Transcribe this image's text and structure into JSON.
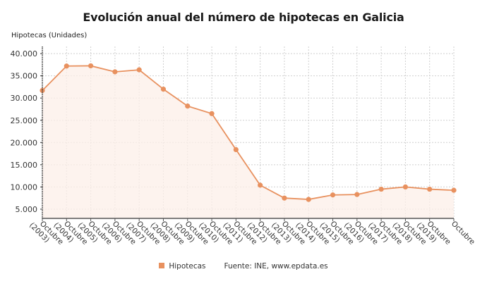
{
  "header": {
    "title": "Evolución anual del número de hipotecas en Galicia",
    "y_axis_title": "Hipotecas (Unidades)"
  },
  "legend": {
    "series_label": "Hipotecas",
    "source": "Fuente: INE, www.epdata.es"
  },
  "colors": {
    "line": "#E8915F",
    "marker": "#E8915F",
    "area_fill": "#FCEFE8",
    "grid": "#CFCFCF",
    "axis": "#333333"
  },
  "chart_data": {
    "type": "line",
    "title": "Evolución anual del número de hipotecas en Galicia",
    "xlabel": "",
    "ylabel": "Hipotecas (Unidades)",
    "categories": [
      "Octubre (2003)",
      "Octubre (2004)",
      "Octubre (2005)",
      "Octubre (2006)",
      "Octubre (2007)",
      "Octubre (2008)",
      "Octubre (2009)",
      "Octubre (2010)",
      "Octubre (2011)",
      "Octubre (2012)",
      "Octubre (2013)",
      "Octubre (2014)",
      "Octubre (2015)",
      "Octubre (2016)",
      "Octubre (2017)",
      "Octubre (2018)",
      "Octubre (2019)",
      "Octubre"
    ],
    "series": [
      {
        "name": "Hipotecas",
        "values": [
          31700,
          37200,
          37250,
          35900,
          36350,
          32000,
          28200,
          26500,
          18400,
          10400,
          7500,
          7200,
          8200,
          8300,
          9500,
          10000,
          9500,
          9250
        ]
      }
    ],
    "yticks": [
      5000,
      10000,
      15000,
      20000,
      25000,
      30000,
      35000,
      40000
    ],
    "ytick_labels": [
      "5.000",
      "10.000",
      "15.000",
      "20.000",
      "25.000",
      "30.000",
      "35.000",
      "40.000"
    ],
    "ylim": [
      2000,
      41500
    ],
    "grid": true,
    "legend_position": "bottom",
    "source": "Fuente: INE, www.epdata.es"
  }
}
